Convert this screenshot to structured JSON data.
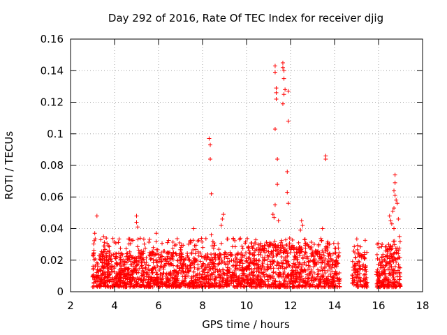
{
  "chart_data": {
    "type": "scatter",
    "title": "Day 292 of 2016, Rate Of TEC Index for receiver djig",
    "xlabel": "GPS time / hours",
    "ylabel": "ROTI / TECUs",
    "xlim": [
      2,
      18
    ],
    "ylim": [
      0,
      0.16
    ],
    "xticks": [
      "2",
      "4",
      "6",
      "8",
      "10",
      "12",
      "14",
      "16",
      "18"
    ],
    "yticks": [
      "0",
      "0.02",
      "0.04",
      "0.06",
      "0.08",
      "0.1",
      "0.12",
      "0.14",
      "0.16"
    ],
    "grid": true,
    "marker": "+",
    "color": "#ff0000",
    "dense_band": {
      "x_start": 3.0,
      "x_end": 17.0,
      "gaps": [
        [
          14.25,
          14.8
        ],
        [
          15.5,
          15.9
        ]
      ],
      "base_min": 0.003,
      "base_max": 0.025
    },
    "notable_points": [
      {
        "x": 3.1,
        "y": 0.037
      },
      {
        "x": 3.2,
        "y": 0.048
      },
      {
        "x": 3.5,
        "y": 0.035
      },
      {
        "x": 3.55,
        "y": 0.029
      },
      {
        "x": 5.0,
        "y": 0.048
      },
      {
        "x": 5.0,
        "y": 0.044
      },
      {
        "x": 5.05,
        "y": 0.041
      },
      {
        "x": 5.9,
        "y": 0.037
      },
      {
        "x": 7.6,
        "y": 0.04
      },
      {
        "x": 8.3,
        "y": 0.097
      },
      {
        "x": 8.35,
        "y": 0.093
      },
      {
        "x": 8.35,
        "y": 0.084
      },
      {
        "x": 8.4,
        "y": 0.062
      },
      {
        "x": 8.4,
        "y": 0.036
      },
      {
        "x": 8.95,
        "y": 0.049
      },
      {
        "x": 8.9,
        "y": 0.046
      },
      {
        "x": 8.85,
        "y": 0.042
      },
      {
        "x": 11.3,
        "y": 0.143
      },
      {
        "x": 11.3,
        "y": 0.139
      },
      {
        "x": 11.35,
        "y": 0.129
      },
      {
        "x": 11.35,
        "y": 0.126
      },
      {
        "x": 11.35,
        "y": 0.122
      },
      {
        "x": 11.3,
        "y": 0.103
      },
      {
        "x": 11.4,
        "y": 0.084
      },
      {
        "x": 11.4,
        "y": 0.068
      },
      {
        "x": 11.65,
        "y": 0.145
      },
      {
        "x": 11.65,
        "y": 0.142
      },
      {
        "x": 11.7,
        "y": 0.14
      },
      {
        "x": 11.7,
        "y": 0.135
      },
      {
        "x": 11.75,
        "y": 0.128
      },
      {
        "x": 11.9,
        "y": 0.127
      },
      {
        "x": 11.7,
        "y": 0.125
      },
      {
        "x": 11.65,
        "y": 0.119
      },
      {
        "x": 11.9,
        "y": 0.108
      },
      {
        "x": 11.85,
        "y": 0.076
      },
      {
        "x": 11.85,
        "y": 0.063
      },
      {
        "x": 11.9,
        "y": 0.056
      },
      {
        "x": 11.3,
        "y": 0.055
      },
      {
        "x": 11.2,
        "y": 0.049
      },
      {
        "x": 11.25,
        "y": 0.047
      },
      {
        "x": 11.45,
        "y": 0.045
      },
      {
        "x": 12.5,
        "y": 0.045
      },
      {
        "x": 12.55,
        "y": 0.042
      },
      {
        "x": 12.45,
        "y": 0.039
      },
      {
        "x": 13.6,
        "y": 0.086
      },
      {
        "x": 13.6,
        "y": 0.084
      },
      {
        "x": 13.45,
        "y": 0.04
      },
      {
        "x": 16.75,
        "y": 0.074
      },
      {
        "x": 16.75,
        "y": 0.069
      },
      {
        "x": 16.7,
        "y": 0.064
      },
      {
        "x": 16.75,
        "y": 0.061
      },
      {
        "x": 16.8,
        "y": 0.058
      },
      {
        "x": 16.85,
        "y": 0.056
      },
      {
        "x": 16.7,
        "y": 0.053
      },
      {
        "x": 16.65,
        "y": 0.051
      },
      {
        "x": 16.5,
        "y": 0.048
      },
      {
        "x": 16.55,
        "y": 0.045
      },
      {
        "x": 16.9,
        "y": 0.046
      },
      {
        "x": 16.6,
        "y": 0.043
      },
      {
        "x": 16.7,
        "y": 0.04
      },
      {
        "x": 16.95,
        "y": 0.035
      }
    ]
  }
}
